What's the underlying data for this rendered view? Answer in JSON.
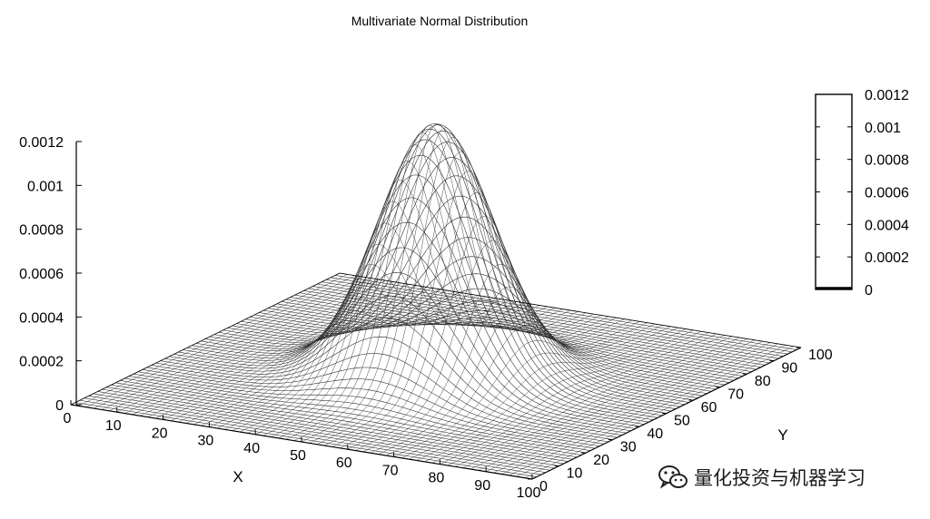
{
  "chart_data": {
    "type": "surface",
    "title": "Multivariate Normal Distribution",
    "xlabel": "X",
    "ylabel": "Y",
    "zlabel": "",
    "x_ticks": [
      "0",
      "10",
      "20",
      "30",
      "40",
      "50",
      "60",
      "70",
      "80",
      "90",
      "100"
    ],
    "y_ticks": [
      "0",
      "10",
      "20",
      "30",
      "40",
      "50",
      "60",
      "70",
      "80",
      "90",
      "100"
    ],
    "z_ticks": [
      "0",
      "0.0002",
      "0.0004",
      "0.0006",
      "0.0008",
      "0.001",
      "0.0012"
    ],
    "xlim": [
      0,
      100
    ],
    "ylim": [
      0,
      100
    ],
    "zlim": [
      0,
      0.0012
    ],
    "surface": {
      "function": "bivariate normal density",
      "mean": [
        50,
        50
      ],
      "std": [
        11,
        11
      ],
      "peak": 0.00115
    },
    "colorbox": {
      "ticks": [
        "0.0012",
        "0.001",
        "0.0008",
        "0.0006",
        "0.0004",
        "0.0002",
        "0"
      ],
      "range": [
        0,
        0.0012
      ]
    },
    "grid": false,
    "legend": "none"
  },
  "watermark": {
    "icon": "wechat-icon",
    "text": "量化投资与机器学习"
  }
}
